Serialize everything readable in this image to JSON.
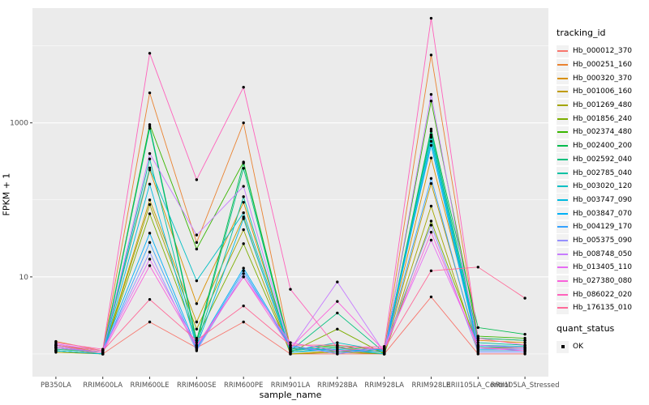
{
  "figure": {
    "panel_bg": "#EBEBEB",
    "grid_color": "#FFFFFF",
    "point_color": "#000000",
    "axis_text_color": "#4D4D4D",
    "tick_mark_color": "#333333"
  },
  "chart_data": {
    "type": "line",
    "title": "",
    "xlabel": "sample_name",
    "ylabel": "FPKM + 1",
    "y_scale": "log10",
    "y_major_ticks": [
      {
        "label": "1000",
        "value": 1000
      },
      {
        "label": "10",
        "value": 10
      }
    ],
    "y_minor_gridlines": [
      1,
      100,
      10000
    ],
    "ylim_log10": [
      -0.295,
      4.49
    ],
    "grid": "on",
    "legend_position": "right",
    "categories": [
      "PB350LA",
      "RRIM600LA",
      "RRIM600LE",
      "RRIM600SE",
      "RRIM600PE",
      "RRIM901LA",
      "RRIM928BA",
      "RRIM928LA",
      "RRIM928LE",
      "RRII105LA_Control",
      "RRII105LA_Stressed"
    ],
    "series": [
      {
        "name": "Hb_000012_370",
        "color": "#F8766D",
        "values": [
          1.2,
          1.0,
          2.6,
          1.2,
          2.6,
          1.0,
          1.0,
          1.0,
          5.5,
          1.0,
          1.0
        ]
      },
      {
        "name": "Hb_000251_160",
        "color": "#EA8331",
        "values": [
          1.45,
          1.1,
          2450,
          28,
          1000,
          1.2,
          1.1,
          1.1,
          7600,
          1.6,
          1.5
        ]
      },
      {
        "name": "Hb_000320_370",
        "color": "#D89000",
        "values": [
          1.3,
          1.05,
          245,
          4.5,
          93,
          1.05,
          1.2,
          1.05,
          350,
          1.5,
          1.4
        ]
      },
      {
        "name": "Hb_001006_160",
        "color": "#C09B00",
        "values": [
          1.1,
          1.0,
          100,
          2.6,
          60,
          1.0,
          1.1,
          1.0,
          163,
          1.2,
          1.2
        ]
      },
      {
        "name": "Hb_001269_480",
        "color": "#A3A500",
        "values": [
          1.05,
          1.0,
          87,
          2.1,
          41,
          1.0,
          1.05,
          1.0,
          83,
          1.1,
          1.1
        ]
      },
      {
        "name": "Hb_001856_240",
        "color": "#7CAE00",
        "values": [
          1.1,
          1.0,
          66,
          1.6,
          27,
          1.05,
          2.1,
          1.0,
          53,
          1.25,
          1.2
        ]
      },
      {
        "name": "Hb_002374_480",
        "color": "#39B600",
        "values": [
          1.2,
          1.05,
          950,
          23,
          310,
          1.15,
          1.3,
          1.1,
          1920,
          1.7,
          1.6
        ]
      },
      {
        "name": "Hb_002400_200",
        "color": "#00BB4E",
        "values": [
          1.1,
          1.0,
          900,
          1.5,
          300,
          1.1,
          1.25,
          1.05,
          830,
          2.2,
          1.8
        ]
      },
      {
        "name": "Hb_002592_040",
        "color": "#00BF7D",
        "values": [
          1.15,
          1.05,
          850,
          1.4,
          257,
          1.1,
          3.4,
          1.05,
          780,
          1.6,
          1.5
        ]
      },
      {
        "name": "Hb_002785_040",
        "color": "#00C1A3",
        "values": [
          1.1,
          1.0,
          340,
          1.3,
          110,
          1.05,
          1.2,
          1.0,
          700,
          1.4,
          1.3
        ]
      },
      {
        "name": "Hb_003020_120",
        "color": "#00BFC4",
        "values": [
          1.2,
          1.05,
          260,
          8.9,
          68,
          1.1,
          1.4,
          1.1,
          650,
          1.3,
          1.25
        ]
      },
      {
        "name": "Hb_003747_090",
        "color": "#00BAE0",
        "values": [
          1.1,
          1.0,
          160,
          1.25,
          57,
          1.05,
          1.15,
          1.0,
          575,
          1.25,
          1.2
        ]
      },
      {
        "name": "Hb_003847_070",
        "color": "#00B0F6",
        "values": [
          1.3,
          1.1,
          37,
          1.2,
          13,
          1.25,
          1.1,
          1.15,
          510,
          1.15,
          1.15
        ]
      },
      {
        "name": "Hb_004129_170",
        "color": "#35A2FF",
        "values": [
          1.25,
          1.05,
          28,
          1.15,
          12,
          1.2,
          1.05,
          1.1,
          190,
          1.1,
          1.1
        ]
      },
      {
        "name": "Hb_005375_090",
        "color": "#9590FF",
        "values": [
          1.3,
          1.1,
          21,
          1.1,
          11,
          1.3,
          1.0,
          1.2,
          47,
          1.05,
          1.05
        ]
      },
      {
        "name": "Hb_008748_050",
        "color": "#C77CFF",
        "values": [
          1.2,
          1.05,
          400,
          35,
          150,
          1.15,
          8.6,
          1.05,
          2340,
          1.2,
          1.15
        ]
      },
      {
        "name": "Hb_013405_110",
        "color": "#E76BF3",
        "values": [
          1.35,
          1.1,
          17,
          1.3,
          10,
          1.4,
          1.1,
          1.2,
          30,
          1.3,
          1.2
        ]
      },
      {
        "name": "Hb_027380_080",
        "color": "#FA62DB",
        "values": [
          1.25,
          1.05,
          14,
          1.25,
          10,
          1.2,
          4.8,
          1.1,
          38,
          1.2,
          1.1
        ]
      },
      {
        "name": "Hb_086022_020",
        "color": "#FF62BC",
        "values": [
          1.4,
          1.15,
          8000,
          183,
          2900,
          6.9,
          1.2,
          1.25,
          22800,
          1.6,
          1.3
        ]
      },
      {
        "name": "Hb_176135_010",
        "color": "#FF6A98",
        "values": [
          1.3,
          1.1,
          5.1,
          1.5,
          4.2,
          1.3,
          1.3,
          1.15,
          12,
          13.4,
          5.3
        ]
      }
    ]
  },
  "legend": {
    "title": "tracking_id",
    "quant_status_title": "quant_status",
    "quant_status_items": [
      {
        "label": "OK"
      }
    ]
  }
}
